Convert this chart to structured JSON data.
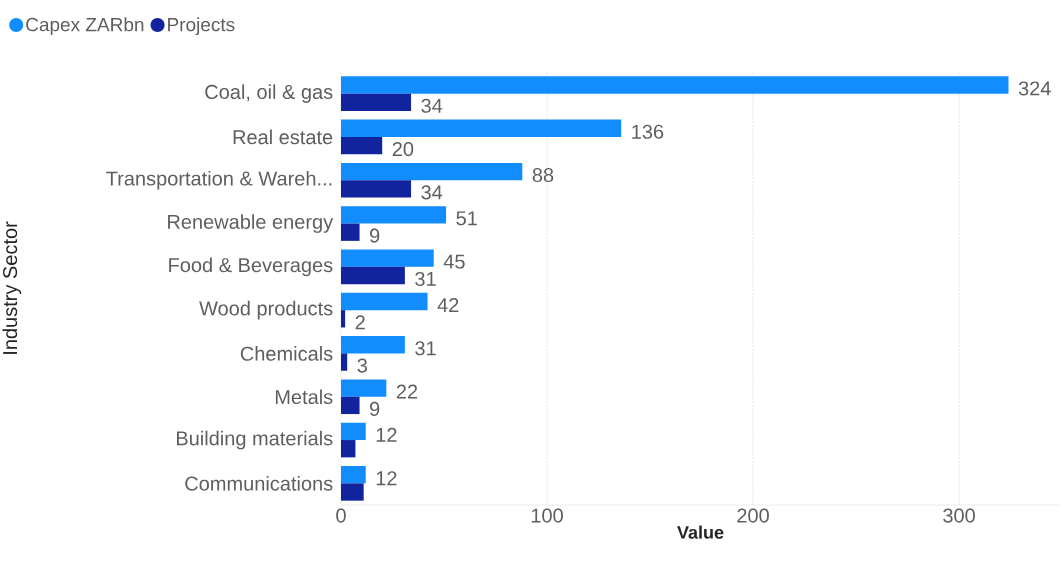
{
  "chart_data": {
    "type": "bar",
    "orientation": "horizontal",
    "categories": [
      "Coal, oil & gas",
      "Real estate",
      "Transportation & Wareh...",
      "Renewable energy",
      "Food & Beverages",
      "Wood products",
      "Chemicals",
      "Metals",
      "Building materials",
      "Communications"
    ],
    "series": [
      {
        "name": "Capex ZARbn",
        "color": "#118dff",
        "values": [
          324,
          136,
          88,
          51,
          45,
          42,
          31,
          22,
          12,
          12
        ],
        "value_labels": [
          "324",
          "136",
          "88",
          "51",
          "45",
          "42",
          "31",
          "22",
          "12",
          "12"
        ]
      },
      {
        "name": "Projects",
        "color": "#12239e",
        "values": [
          34,
          20,
          34,
          9,
          31,
          2,
          3,
          9,
          7,
          11
        ],
        "value_labels": [
          "34",
          "20",
          "34",
          "9",
          "31",
          "2",
          "3",
          "9",
          null,
          null
        ]
      }
    ],
    "xlabel": "Value",
    "ylabel": "Industry Sector",
    "xlim": [
      0,
      349
    ],
    "xticks": [
      0,
      100,
      200,
      300
    ],
    "grid": "x",
    "legend": "top left"
  }
}
